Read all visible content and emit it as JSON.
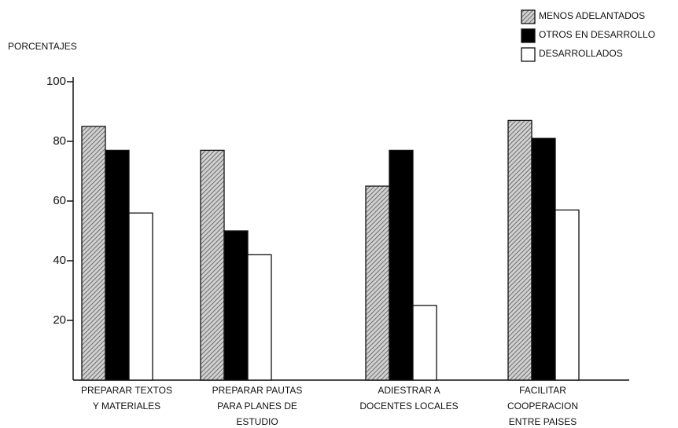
{
  "chart_data": {
    "type": "bar",
    "y_label": "PORCENTAJES",
    "categories": [
      [
        "PREPARAR TEXTOS",
        "Y MATERIALES"
      ],
      [
        "PREPARAR PAUTAS",
        "PARA PLANES DE",
        "ESTUDIO"
      ],
      [
        "ADIESTRAR A",
        "DOCENTES LOCALES"
      ],
      [
        "FACILITAR",
        "COOPERACION",
        "ENTRE PAISES"
      ]
    ],
    "series": [
      {
        "name": "MENOS ADELANTADOS",
        "color": "#9a9a9a",
        "pattern": "hatch",
        "values": [
          85,
          77,
          65,
          87
        ]
      },
      {
        "name": "OTROS EN DESARROLLO",
        "color": "#000000",
        "values": [
          77,
          50,
          77,
          81
        ]
      },
      {
        "name": "DESARROLLADOS",
        "color": "#ffffff",
        "values": [
          56,
          42,
          25,
          57
        ]
      }
    ],
    "ylim": [
      0,
      100
    ],
    "yticks": [
      20,
      40,
      60,
      80,
      100
    ],
    "legend": "top-right"
  }
}
